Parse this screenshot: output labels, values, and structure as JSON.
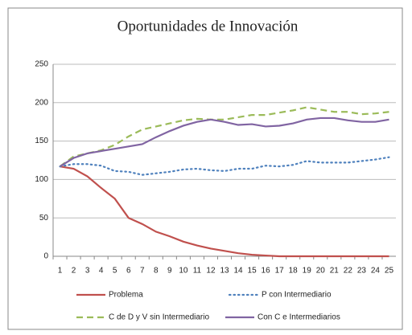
{
  "chart_data": {
    "type": "line",
    "title": "Oportunidades de Innovación",
    "categories": [
      1,
      2,
      3,
      4,
      5,
      6,
      7,
      8,
      9,
      10,
      11,
      12,
      13,
      14,
      15,
      16,
      17,
      18,
      19,
      20,
      21,
      22,
      23,
      24,
      25
    ],
    "series": [
      {
        "name": "Problema",
        "color": "#c0504d",
        "style": "solid",
        "values": [
          117,
          114,
          104,
          89,
          75,
          50,
          42,
          32,
          26,
          19,
          14,
          10,
          7,
          4,
          2,
          1,
          0,
          0,
          0,
          0,
          0,
          0,
          0,
          0,
          0
        ]
      },
      {
        "name": "P con Intermediario",
        "color": "#4f81bd",
        "style": "dotted",
        "values": [
          117,
          120,
          120,
          118,
          111,
          110,
          106,
          108,
          110,
          113,
          114,
          112,
          111,
          114,
          114,
          118,
          117,
          119,
          124,
          122,
          122,
          122,
          124,
          126,
          129
        ]
      },
      {
        "name": "C de D y V sin Intermediario",
        "color": "#9bbb59",
        "style": "dashed",
        "values": [
          117,
          130,
          134,
          138,
          145,
          156,
          165,
          169,
          173,
          177,
          179,
          178,
          178,
          181,
          184,
          184,
          187,
          190,
          194,
          191,
          188,
          188,
          185,
          186,
          188
        ]
      },
      {
        "name": "Con C e Intermediarios",
        "color": "#8064a2",
        "style": "solid",
        "values": [
          117,
          128,
          134,
          137,
          140,
          143,
          146,
          155,
          163,
          170,
          175,
          178,
          175,
          171,
          172,
          169,
          170,
          173,
          178,
          180,
          180,
          177,
          175,
          175,
          178
        ]
      }
    ],
    "ylim": [
      0,
      250
    ],
    "yticks": [
      0,
      50,
      100,
      150,
      200,
      250
    ],
    "grid": true
  }
}
